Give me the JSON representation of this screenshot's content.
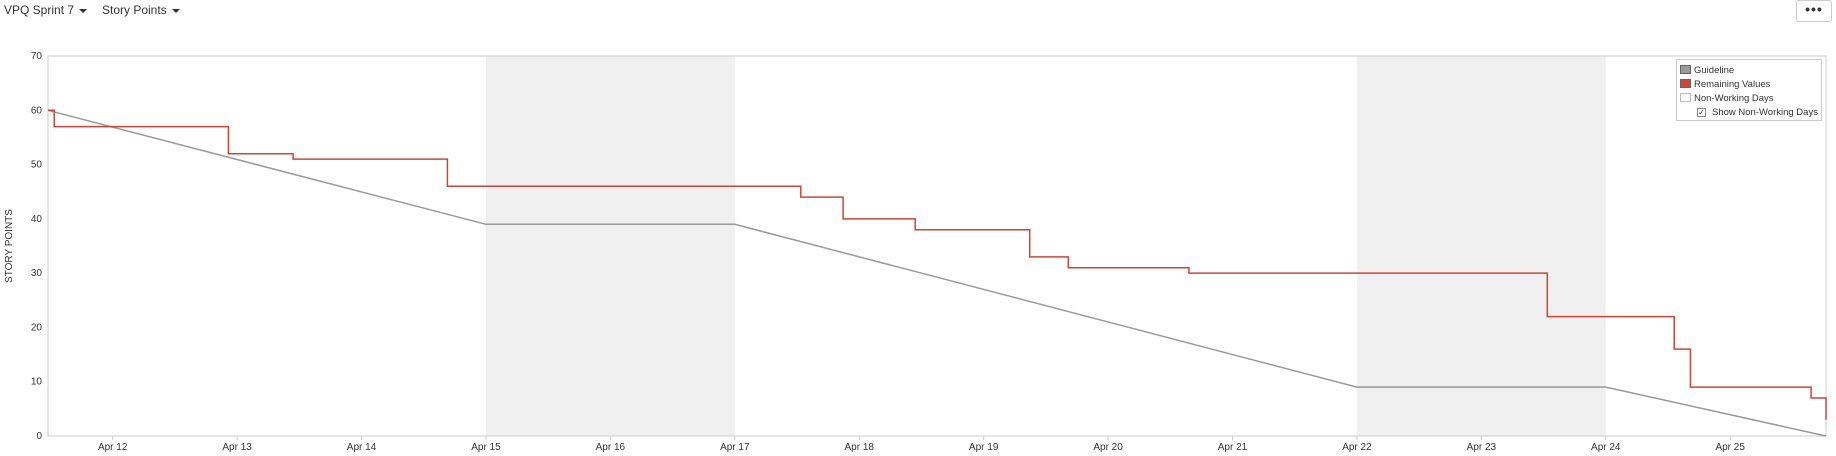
{
  "toolbar": {
    "sprint_label": "VPQ Sprint 7",
    "field_label": "Story Points",
    "more_label": "•••"
  },
  "legend": {
    "items": [
      {
        "label": "Guideline",
        "color": "#999999"
      },
      {
        "label": "Remaining Values",
        "color": "#d04437"
      },
      {
        "label": "Non-Working Days",
        "color": "#ffffff"
      }
    ],
    "show_non_working_label": "Show Non-Working Days",
    "show_non_working_checked": true
  },
  "colors": {
    "guideline": "#999999",
    "remaining": "#d04437",
    "non_working": "#f0f0f0",
    "axis": "#cccccc"
  },
  "chart_data": {
    "type": "line",
    "ylabel": "STORY POINTS",
    "ylim": [
      0,
      70
    ],
    "yticks": [
      0,
      10,
      20,
      30,
      40,
      50,
      60,
      70
    ],
    "xlim": [
      11.48,
      25.77
    ],
    "xticks": [
      {
        "label": "Apr 12",
        "day": 12
      },
      {
        "label": "Apr 13",
        "day": 13
      },
      {
        "label": "Apr 14",
        "day": 14
      },
      {
        "label": "Apr 15",
        "day": 15
      },
      {
        "label": "Apr 16",
        "day": 16
      },
      {
        "label": "Apr 17",
        "day": 17
      },
      {
        "label": "Apr 18",
        "day": 18
      },
      {
        "label": "Apr 19",
        "day": 19
      },
      {
        "label": "Apr 20",
        "day": 20
      },
      {
        "label": "Apr 21",
        "day": 21
      },
      {
        "label": "Apr 22",
        "day": 22
      },
      {
        "label": "Apr 23",
        "day": 23
      },
      {
        "label": "Apr 24",
        "day": 24
      },
      {
        "label": "Apr 25",
        "day": 25
      }
    ],
    "non_working_days": [
      [
        15,
        17
      ],
      [
        22,
        24
      ]
    ],
    "series": [
      {
        "name": "Guideline",
        "points": [
          [
            11.48,
            60
          ],
          [
            15,
            39
          ],
          [
            17,
            39
          ],
          [
            22,
            9
          ],
          [
            24,
            9
          ],
          [
            25.77,
            0
          ]
        ]
      },
      {
        "name": "Remaining Values",
        "steps": [
          [
            11.48,
            60
          ],
          [
            11.53,
            57
          ],
          [
            12.93,
            52
          ],
          [
            13.45,
            51
          ],
          [
            14.69,
            46
          ],
          [
            17.53,
            44
          ],
          [
            17.87,
            40
          ],
          [
            18.45,
            38
          ],
          [
            19.37,
            33
          ],
          [
            19.68,
            31
          ],
          [
            20.65,
            30
          ],
          [
            23.53,
            22
          ],
          [
            24.55,
            16
          ],
          [
            24.68,
            9
          ],
          [
            25.65,
            7
          ],
          [
            25.77,
            3
          ]
        ]
      }
    ]
  }
}
